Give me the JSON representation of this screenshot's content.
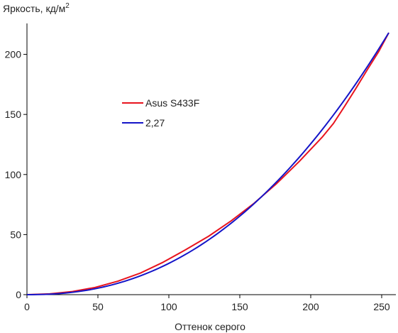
{
  "chart_data": {
    "type": "line",
    "title": "",
    "ylabel_main": "Яркость, кд/м",
    "ylabel_sup": "2",
    "xlabel": "Оттенок серого",
    "xlim": [
      0,
      255
    ],
    "ylim": [
      0,
      220
    ],
    "xticks": [
      "0",
      "50",
      "100",
      "150",
      "200",
      "250"
    ],
    "yticks": [
      "0",
      "50",
      "100",
      "150",
      "200"
    ],
    "grid": false,
    "legend_position": "upper-left",
    "series": [
      {
        "name": "Asus S433F",
        "color": "#e8141e",
        "x": [
          0,
          16,
          32,
          48,
          64,
          80,
          96,
          112,
          128,
          144,
          160,
          176,
          192,
          208,
          216,
          224,
          232,
          240,
          248,
          255
        ],
        "y": [
          0,
          0.7,
          2.6,
          6.0,
          11.2,
          18.0,
          27.0,
          37.5,
          48.6,
          61.5,
          76.0,
          92.5,
          111.0,
          131.0,
          142.5,
          157.0,
          172.0,
          187.5,
          202.5,
          218.0
        ]
      },
      {
        "name": "2,27",
        "color": "#1414c8",
        "x": [
          0,
          16,
          32,
          48,
          64,
          80,
          96,
          112,
          128,
          144,
          160,
          176,
          192,
          208,
          216,
          224,
          232,
          240,
          248,
          255
        ],
        "y": [
          0,
          0.4,
          2.3,
          6.0,
          11.6,
          19.1,
          28.6,
          40.1,
          53.5,
          69.1,
          86.6,
          106.3,
          128.3,
          152.4,
          165.3,
          178.7,
          192.7,
          207.2,
          222.5,
          218.0
        ]
      }
    ]
  }
}
